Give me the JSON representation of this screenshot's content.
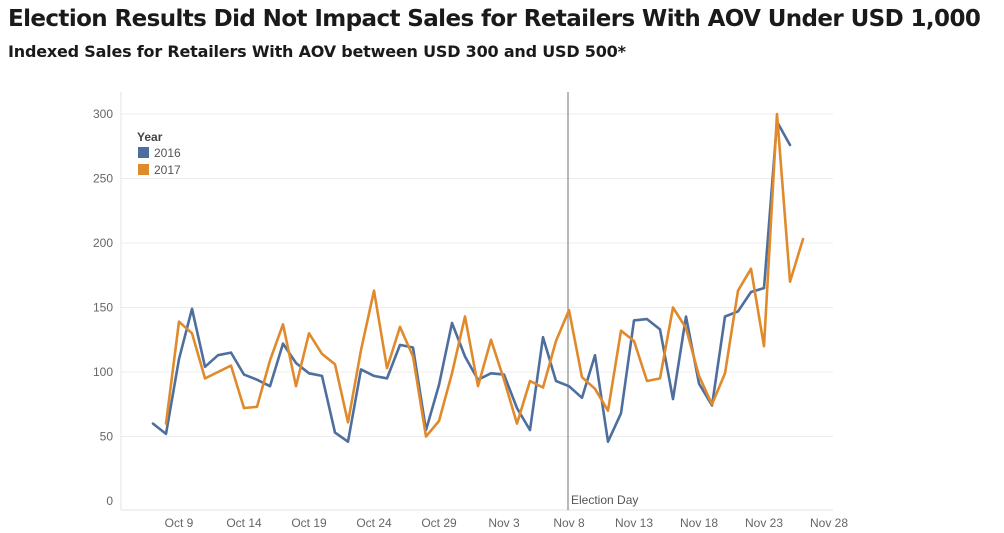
{
  "title": "Election Results Did Not Impact Sales for Retailers With AOV Under USD 1,000",
  "subtitle": "Indexed Sales for Retailers With AOV between USD 300 and USD 500*",
  "colors": {
    "2016": "#4e6f9e",
    "2017": "#e08a2c",
    "grid": "#ececec",
    "annotation_line": "#888888"
  },
  "chart_data": {
    "type": "line",
    "x_type": "date",
    "x_range": [
      "2017-10-03",
      "2017-11-29"
    ],
    "x_ticks": [
      {
        "date": "2017-10-09",
        "label": "Oct 9"
      },
      {
        "date": "2017-10-14",
        "label": "Oct 14"
      },
      {
        "date": "2017-10-19",
        "label": "Oct 19"
      },
      {
        "date": "2017-10-24",
        "label": "Oct 24"
      },
      {
        "date": "2017-10-29",
        "label": "Oct 29"
      },
      {
        "date": "2017-11-03",
        "label": "Nov 3"
      },
      {
        "date": "2017-11-08",
        "label": "Nov 8"
      },
      {
        "date": "2017-11-13",
        "label": "Nov 13"
      },
      {
        "date": "2017-11-18",
        "label": "Nov 18"
      },
      {
        "date": "2017-11-23",
        "label": "Nov 23"
      },
      {
        "date": "2017-11-28",
        "label": "Nov 28"
      }
    ],
    "ylim": [
      0,
      310
    ],
    "y_ticks": [
      0,
      50,
      100,
      150,
      200,
      250,
      300
    ],
    "grid": true,
    "legend": {
      "title": "Year",
      "position": "top-left"
    },
    "annotation": {
      "date": "2017-11-08",
      "label": "Election Day"
    },
    "series": [
      {
        "name": "2016",
        "color_key": "2016",
        "points": [
          [
            "2017-10-07",
            60
          ],
          [
            "2017-10-08",
            52
          ],
          [
            "2017-10-09",
            110
          ],
          [
            "2017-10-10",
            149
          ],
          [
            "2017-10-11",
            104
          ],
          [
            "2017-10-12",
            113
          ],
          [
            "2017-10-13",
            115
          ],
          [
            "2017-10-14",
            98
          ],
          [
            "2017-10-15",
            94
          ],
          [
            "2017-10-16",
            89
          ],
          [
            "2017-10-17",
            122
          ],
          [
            "2017-10-18",
            107
          ],
          [
            "2017-10-19",
            99
          ],
          [
            "2017-10-20",
            97
          ],
          [
            "2017-10-21",
            53
          ],
          [
            "2017-10-22",
            46
          ],
          [
            "2017-10-23",
            102
          ],
          [
            "2017-10-24",
            97
          ],
          [
            "2017-10-25",
            95
          ],
          [
            "2017-10-26",
            121
          ],
          [
            "2017-10-27",
            119
          ],
          [
            "2017-10-28",
            55
          ],
          [
            "2017-10-29",
            90
          ],
          [
            "2017-10-30",
            138
          ],
          [
            "2017-10-31",
            112
          ],
          [
            "2017-11-01",
            94
          ],
          [
            "2017-11-02",
            99
          ],
          [
            "2017-11-03",
            98
          ],
          [
            "2017-11-04",
            72
          ],
          [
            "2017-11-05",
            55
          ],
          [
            "2017-11-06",
            127
          ],
          [
            "2017-11-07",
            93
          ],
          [
            "2017-11-08",
            89
          ],
          [
            "2017-11-09",
            80
          ],
          [
            "2017-11-10",
            113
          ],
          [
            "2017-11-11",
            46
          ],
          [
            "2017-11-12",
            68
          ],
          [
            "2017-11-13",
            140
          ],
          [
            "2017-11-14",
            141
          ],
          [
            "2017-11-15",
            133
          ],
          [
            "2017-11-16",
            79
          ],
          [
            "2017-11-17",
            143
          ],
          [
            "2017-11-18",
            91
          ],
          [
            "2017-11-19",
            74
          ],
          [
            "2017-11-20",
            143
          ],
          [
            "2017-11-21",
            147
          ],
          [
            "2017-11-22",
            162
          ],
          [
            "2017-11-23",
            165
          ],
          [
            "2017-11-24",
            294
          ],
          [
            "2017-11-25",
            276
          ]
        ]
      },
      {
        "name": "2017",
        "color_key": "2017",
        "points": [
          [
            "2017-10-08",
            60
          ],
          [
            "2017-10-09",
            139
          ],
          [
            "2017-10-10",
            130
          ],
          [
            "2017-10-11",
            95
          ],
          [
            "2017-10-12",
            100
          ],
          [
            "2017-10-13",
            105
          ],
          [
            "2017-10-14",
            72
          ],
          [
            "2017-10-15",
            73
          ],
          [
            "2017-10-16",
            109
          ],
          [
            "2017-10-17",
            137
          ],
          [
            "2017-10-18",
            89
          ],
          [
            "2017-10-19",
            130
          ],
          [
            "2017-10-20",
            114
          ],
          [
            "2017-10-21",
            106
          ],
          [
            "2017-10-22",
            61
          ],
          [
            "2017-10-23",
            117
          ],
          [
            "2017-10-24",
            163
          ],
          [
            "2017-10-25",
            103
          ],
          [
            "2017-10-26",
            135
          ],
          [
            "2017-10-27",
            112
          ],
          [
            "2017-10-28",
            50
          ],
          [
            "2017-10-29",
            62
          ],
          [
            "2017-10-30",
            99
          ],
          [
            "2017-10-31",
            143
          ],
          [
            "2017-11-01",
            89
          ],
          [
            "2017-11-02",
            125
          ],
          [
            "2017-11-03",
            94
          ],
          [
            "2017-11-04",
            60
          ],
          [
            "2017-11-05",
            93
          ],
          [
            "2017-11-06",
            88
          ],
          [
            "2017-11-07",
            124
          ],
          [
            "2017-11-08",
            148
          ],
          [
            "2017-11-09",
            96
          ],
          [
            "2017-11-10",
            87
          ],
          [
            "2017-11-11",
            70
          ],
          [
            "2017-11-12",
            132
          ],
          [
            "2017-11-13",
            124
          ],
          [
            "2017-11-14",
            93
          ],
          [
            "2017-11-15",
            95
          ],
          [
            "2017-11-16",
            150
          ],
          [
            "2017-11-17",
            134
          ],
          [
            "2017-11-18",
            97
          ],
          [
            "2017-11-19",
            75
          ],
          [
            "2017-11-20",
            99
          ],
          [
            "2017-11-21",
            163
          ],
          [
            "2017-11-22",
            180
          ],
          [
            "2017-11-23",
            120
          ],
          [
            "2017-11-24",
            300
          ],
          [
            "2017-11-25",
            170
          ],
          [
            "2017-11-26",
            203
          ]
        ]
      }
    ]
  }
}
